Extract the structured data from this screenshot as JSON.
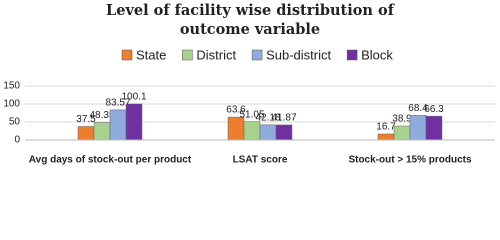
{
  "chart_data": {
    "type": "bar",
    "title": "Level of facility wise distribution of outcome variable",
    "categories": [
      "Avg days of stock-out per product",
      "LSAT score",
      "Stock-out > 15% products"
    ],
    "series": [
      {
        "name": "State",
        "color": "#ed7d31",
        "values": [
          37.5,
          63.6,
          16.7
        ]
      },
      {
        "name": "District",
        "color": "#a9d18e",
        "values": [
          48.35,
          51.05,
          38.9
        ]
      },
      {
        "name": "Sub-district",
        "color": "#8faadc",
        "values": [
          83.57,
          42.18,
          68.4
        ]
      },
      {
        "name": "Block",
        "color": "#7030a0",
        "values": [
          100.1,
          41.87,
          66.3
        ]
      }
    ],
    "ylim": [
      0,
      150
    ],
    "yticks": [
      0,
      50,
      100,
      150
    ],
    "grid": true,
    "legend": "top"
  }
}
